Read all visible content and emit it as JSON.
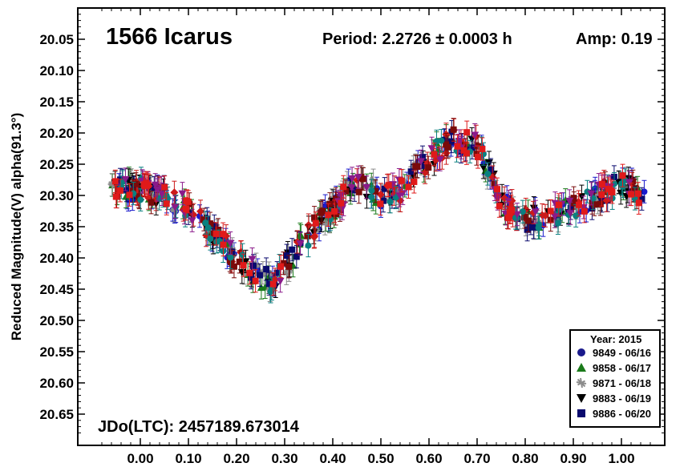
{
  "chart_data": {
    "type": "scatter",
    "title": "1566 Icarus",
    "period_text": "Period: 2.2726 ± 0.0003 h",
    "amp_text": "Amp: 0.19",
    "ylabel": "Reduced Magnitude(V) alpha(91.3°)",
    "jd_text": "JDo(LTC): 2457189.673014",
    "xlim": [
      -0.13,
      1.09
    ],
    "ylim": [
      20.7,
      20.0
    ],
    "y_inverted": true,
    "x_ticks": [
      "0.00",
      "0.10",
      "0.20",
      "0.30",
      "0.40",
      "0.50",
      "0.60",
      "0.70",
      "0.80",
      "0.90",
      "1.00"
    ],
    "x_tick_values": [
      0.0,
      0.1,
      0.2,
      0.3,
      0.4,
      0.5,
      0.6,
      0.7,
      0.8,
      0.9,
      1.0
    ],
    "y_ticks": [
      "20.05",
      "20.10",
      "20.15",
      "20.20",
      "20.25",
      "20.30",
      "20.35",
      "20.40",
      "20.45",
      "20.50",
      "20.55",
      "20.60",
      "20.65"
    ],
    "y_tick_values": [
      20.05,
      20.1,
      20.15,
      20.2,
      20.25,
      20.3,
      20.35,
      20.4,
      20.45,
      20.5,
      20.55,
      20.6,
      20.65
    ],
    "grid": false,
    "legend": {
      "title": "Year: 2015",
      "placement": "bottom-right",
      "entries": [
        {
          "label": "9849 - 06/16",
          "marker": "circle",
          "color": "#1a1a8c"
        },
        {
          "label": "9858 - 06/17",
          "marker": "triangle-up",
          "color": "#1a7a1a"
        },
        {
          "label": "9871 - 06/18",
          "marker": "asterisk",
          "color": "#8c8c8c"
        },
        {
          "label": "9883 - 06/19",
          "marker": "triangle-down",
          "color": "#000000"
        },
        {
          "label": "9886 - 06/20",
          "marker": "square",
          "color": "#0a0a6e"
        }
      ]
    },
    "series_colors": [
      "#1a1acc",
      "#1a7a1a",
      "#8c8c8c",
      "#000000",
      "#0a0a6e",
      "#cc1a1a",
      "#7a0a0a",
      "#0a8080",
      "#8a1a8a",
      "#e01a1a"
    ],
    "curve": {
      "x": [
        -0.06,
        0.0,
        0.05,
        0.1,
        0.15,
        0.2,
        0.25,
        0.28,
        0.33,
        0.4,
        0.45,
        0.5,
        0.55,
        0.6,
        0.65,
        0.7,
        0.75,
        0.8,
        0.85,
        0.9,
        0.95,
        1.0,
        1.05
      ],
      "y": [
        20.29,
        20.29,
        20.3,
        20.32,
        20.36,
        20.4,
        20.43,
        20.44,
        20.38,
        20.32,
        20.28,
        20.3,
        20.29,
        20.24,
        20.21,
        20.22,
        20.31,
        20.34,
        20.33,
        20.32,
        20.3,
        20.28,
        20.3
      ]
    },
    "points_per_series": 28,
    "scatter_spread": 0.018,
    "error_bar": 0.018
  }
}
